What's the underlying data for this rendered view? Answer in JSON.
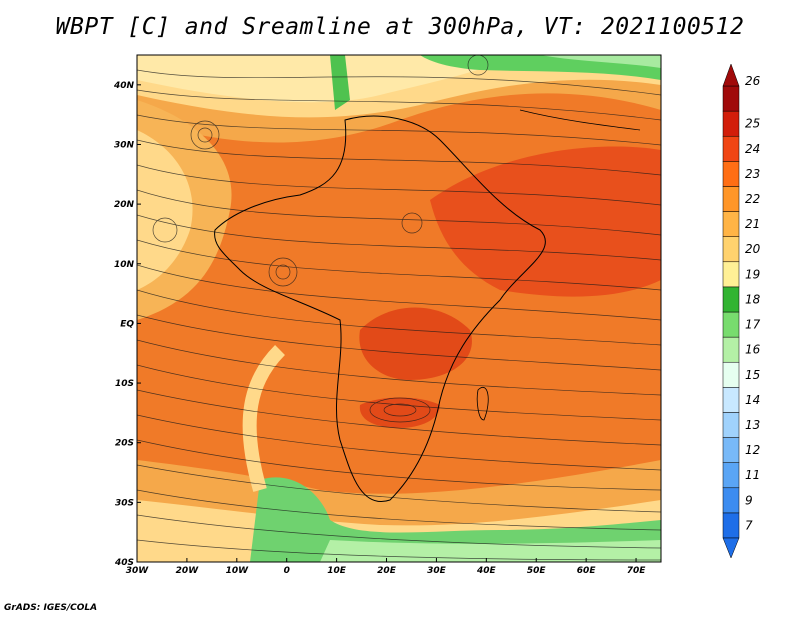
{
  "title": "WBPT [C] and Sreamline at 300hPa, VT: 2021100512",
  "footer": "GrADS: IGES/COLA",
  "map": {
    "region": "Africa and Atlantic",
    "lon_range": [
      -30,
      75
    ],
    "lat_range": [
      -40,
      45
    ],
    "lon_ticks": [
      "30W",
      "20W",
      "10W",
      "0",
      "10E",
      "20E",
      "30E",
      "40E",
      "50E",
      "60E",
      "70E"
    ],
    "lon_values": [
      -30,
      -20,
      -10,
      0,
      10,
      20,
      30,
      40,
      50,
      60,
      70
    ],
    "lat_ticks": [
      "40S",
      "30S",
      "20S",
      "10S",
      "EQ",
      "10N",
      "20N",
      "30N",
      "40N"
    ],
    "lat_values": [
      -40,
      -30,
      -20,
      -10,
      0,
      10,
      20,
      30,
      40
    ]
  },
  "colorbar": {
    "labels": [
      "7",
      "9",
      "11",
      "12",
      "13",
      "14",
      "15",
      "16",
      "17",
      "18",
      "19",
      "20",
      "21",
      "22",
      "23",
      "24",
      "25",
      "26"
    ],
    "colors": [
      "#1e6ee8",
      "#3c8cf0",
      "#5aa5f5",
      "#78b9f8",
      "#a0d2fc",
      "#c8e8ff",
      "#e6fff0",
      "#b4f0a6",
      "#78dc6e",
      "#32b432",
      "#fff096",
      "#ffd26e",
      "#ffb446",
      "#ff9628",
      "#ff6e14",
      "#f04614",
      "#d21e0a",
      "#a00a0a"
    ]
  }
}
